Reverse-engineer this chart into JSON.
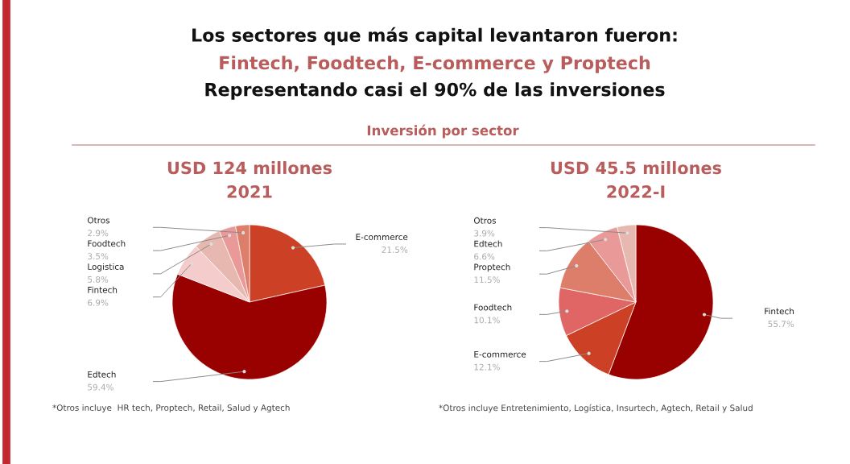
{
  "chart_data": [
    {
      "type": "other",
      "title": "Los sectores que más capital levantaron fueron:",
      "annotations": [
        "Fintech, Foodtech, E-commerce y Proptech",
        "Representando casi el 90% de las inversiones"
      ],
      "subtitle": "Inversión por sector"
    },
    {
      "type": "pie",
      "title": "USD 124 millones\n2021",
      "categories": [
        "E-commerce",
        "Edtech",
        "Fintech",
        "Logistica",
        "Foodtech",
        "Otros"
      ],
      "values": [
        21.5,
        59.4,
        6.9,
        5.8,
        3.5,
        2.9
      ],
      "value_labels": [
        "21.5%",
        "59.4%",
        "6.9%",
        "5.8%",
        "3.5%",
        "2.9%"
      ],
      "colors": [
        "#cc4125",
        "#990000",
        "#f4cccc",
        "#e6b8af",
        "#ea9999",
        "#dd7e6b"
      ],
      "annotations": [
        "*Otros incluye  HR tech, Proptech, Retail, Salud y Agtech"
      ]
    },
    {
      "type": "pie",
      "title": "USD 45.5 millones\n2022-I",
      "categories": [
        "Fintech",
        "E-commerce",
        "Foodtech",
        "Proptech",
        "Edtech",
        "Otros"
      ],
      "values": [
        55.7,
        12.1,
        10.1,
        11.5,
        6.6,
        3.9
      ],
      "value_labels": [
        "55.7%",
        "12.1%",
        "10.1%",
        "11.5%",
        "6.6%",
        "3.9%"
      ],
      "colors": [
        "#990000",
        "#cc4125",
        "#e06666",
        "#dd7e6b",
        "#ea9999",
        "#e6b8af"
      ],
      "annotations": [
        "*Otros incluye Entretenimiento, Logística, Insurtech, Agtech, Retail y Salud"
      ]
    }
  ]
}
